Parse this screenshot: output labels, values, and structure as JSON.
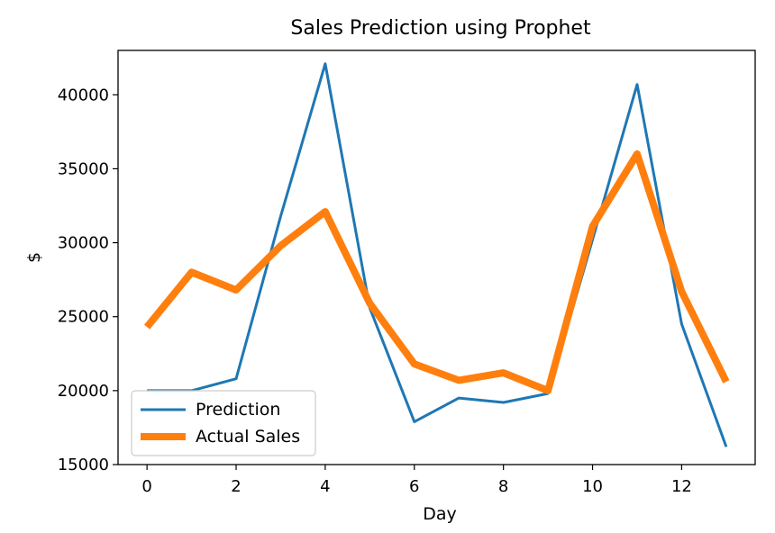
{
  "chart_data": {
    "type": "line",
    "title": "Sales Prediction using Prophet",
    "xlabel": "Day",
    "ylabel": "$",
    "xlim": [
      -0.65,
      13.65
    ],
    "ylim": [
      15000,
      43000
    ],
    "xticks": [
      0,
      2,
      4,
      6,
      8,
      10,
      12
    ],
    "yticks": [
      15000,
      20000,
      25000,
      30000,
      35000,
      40000
    ],
    "x": [
      0,
      1,
      2,
      3,
      4,
      5,
      6,
      7,
      8,
      9,
      10,
      11,
      12,
      13
    ],
    "series": [
      {
        "name": "Prediction",
        "color": "#1f77b4",
        "values": [
          20000,
          20000,
          20800,
          31800,
          42100,
          25600,
          17900,
          19500,
          19200,
          19800,
          30200,
          40700,
          24500,
          16200
        ]
      },
      {
        "name": "Actual Sales",
        "color": "#ff7f0e",
        "values": [
          24300,
          28000,
          26800,
          29800,
          32100,
          25900,
          21800,
          20700,
          21200,
          20000,
          31100,
          36000,
          26700,
          20600
        ]
      }
    ],
    "grid": false,
    "legend": "lower-left"
  }
}
